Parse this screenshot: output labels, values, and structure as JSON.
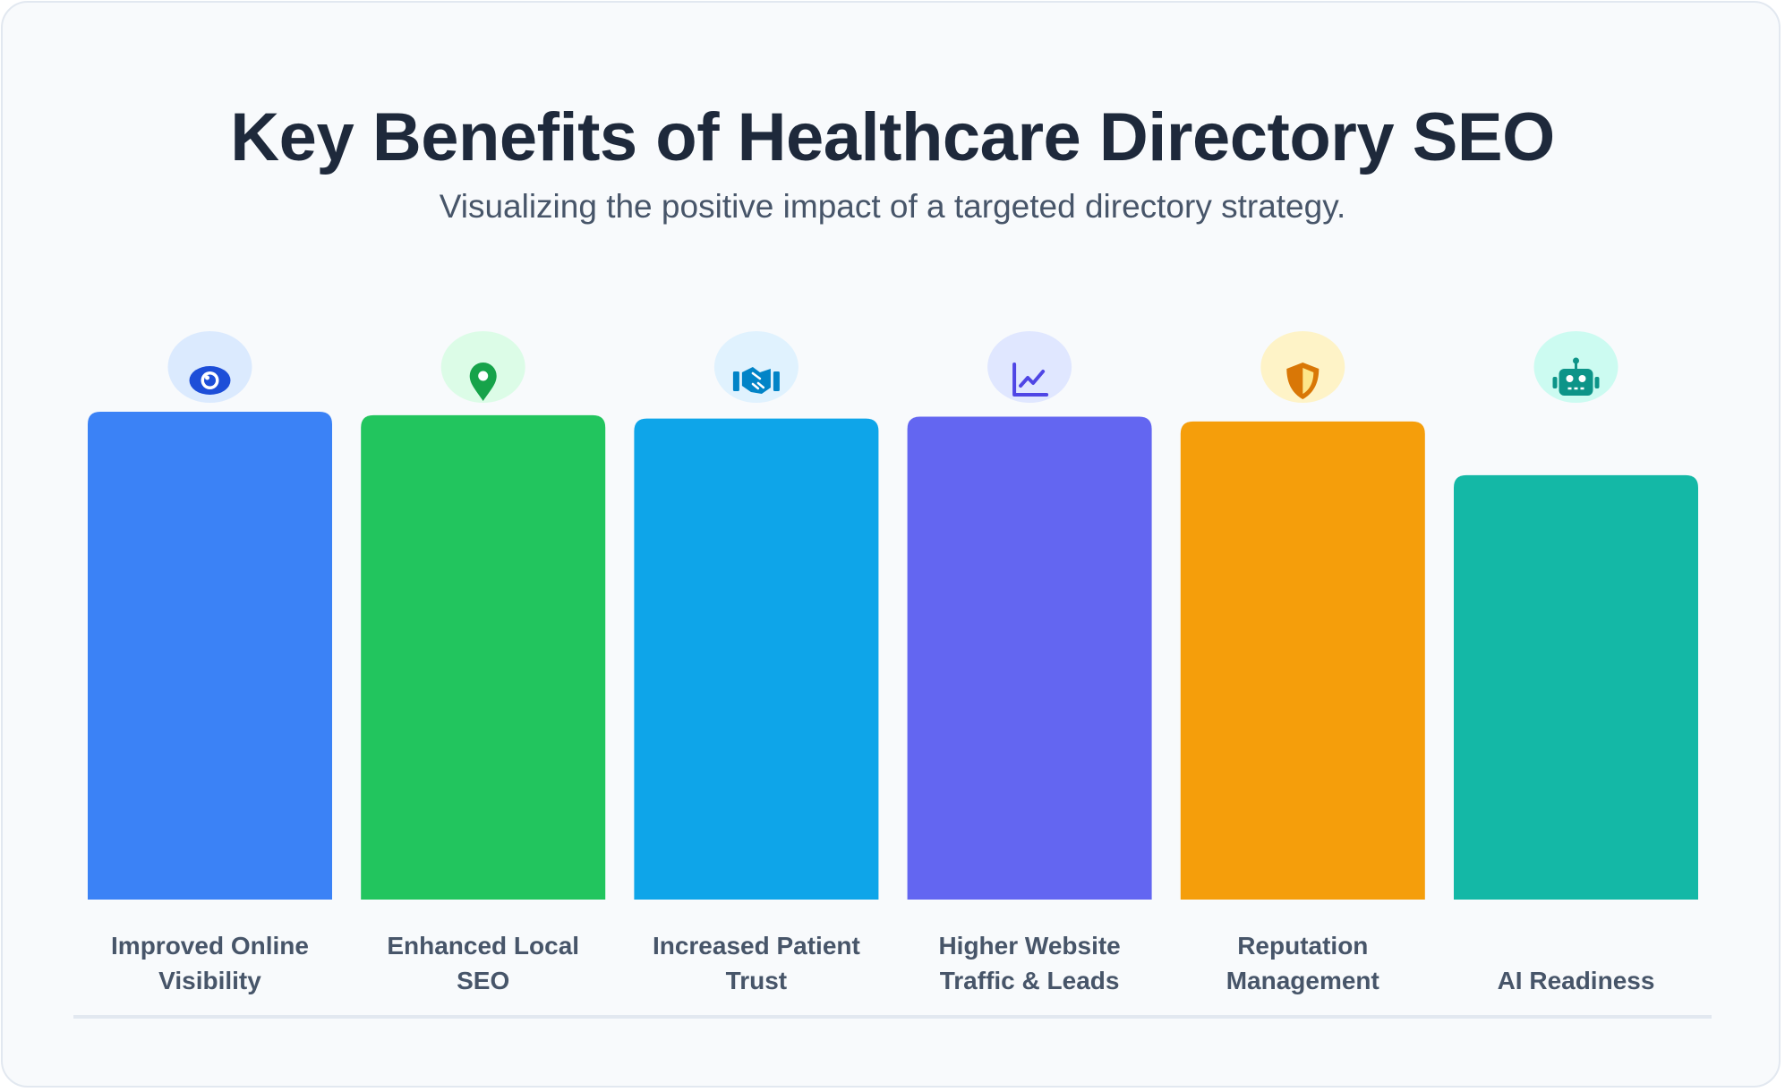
{
  "header": {
    "title": "Key Benefits of Healthcare Directory SEO",
    "subtitle": "Visualizing the positive impact of a targeted directory strategy."
  },
  "chart_data": {
    "type": "bar",
    "categories": [
      "Improved Online Visibility",
      "Enhanced Local SEO",
      "Increased Patient Trust",
      "Higher Website Traffic & Leads",
      "Reputation Management",
      "AI Readiness"
    ],
    "label_lines": [
      [
        "Improved Online",
        "Visibility"
      ],
      [
        "Enhanced Local",
        "SEO"
      ],
      [
        "Increased Patient",
        "Trust"
      ],
      [
        "Higher Website",
        "Traffic & Leads"
      ],
      [
        "Reputation",
        "Management"
      ],
      [
        "AI Readiness"
      ]
    ],
    "values": [
      100,
      99.3,
      98.6,
      99,
      98,
      87
    ],
    "ylim": [
      0,
      100
    ],
    "grid": false,
    "legend": "none",
    "colors": [
      "#3b82f6",
      "#22c55e",
      "#0ea5e9",
      "#6366f1",
      "#f59e0b",
      "#14b8a6"
    ],
    "icon_bg_colors": [
      "#dbeafe",
      "#dcfce7",
      "#e0f2fe",
      "#e0e7ff",
      "#fef3c7",
      "#ccfbf1"
    ],
    "icon_colors": [
      "#1d4ed8",
      "#16a34a",
      "#0284c7",
      "#4f46e5",
      "#d97706",
      "#0d9488"
    ],
    "icons": [
      "eye-icon",
      "map-pin-icon",
      "handshake-icon",
      "trend-chart-icon",
      "shield-icon",
      "robot-icon"
    ]
  }
}
